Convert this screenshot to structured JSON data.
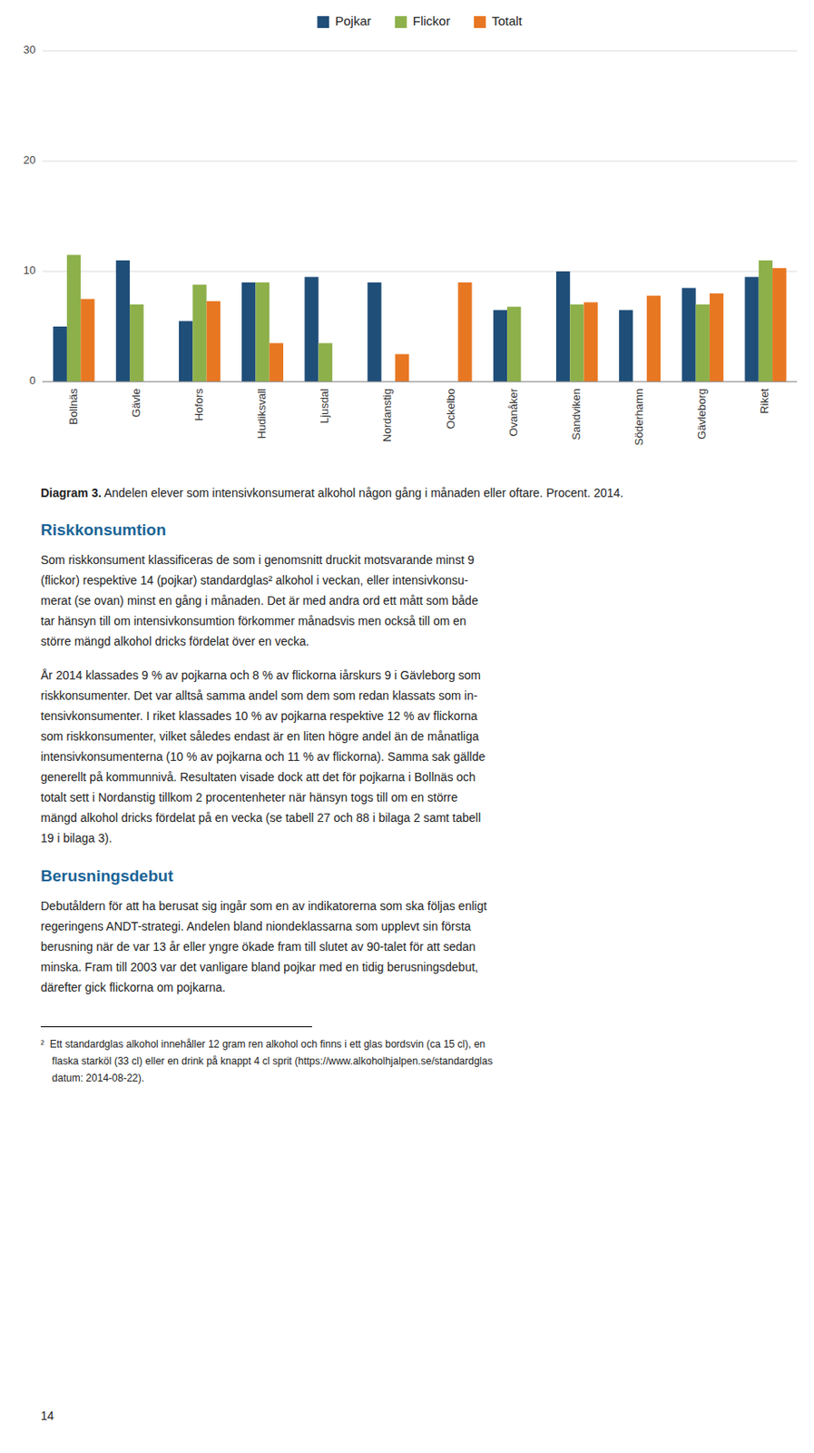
{
  "chart_data": {
    "type": "bar",
    "title": "Diagram 3. Andelen elever som intensivkonsumerat alkohol någon gång i månaden eller oftare. Procent. 2014.",
    "categories": [
      "Bollnäs",
      "Gävle",
      "Hofors",
      "Hudiksvall",
      "Ljusdal",
      "Nordanstig",
      "Ockelbo",
      "Ovanåker",
      "Sandviken",
      "Söderhamn",
      "Gävleborg",
      "Riket"
    ],
    "series": [
      {
        "name": "Pojkar",
        "color": "#1F4E79",
        "values": [
          5.0,
          11.0,
          5.5,
          9.0,
          9.5,
          9.0,
          null,
          6.5,
          10.0,
          6.5,
          8.5,
          9.5
        ]
      },
      {
        "name": "Flickor",
        "color": "#8DB04A",
        "values": [
          11.5,
          7.0,
          8.8,
          9.0,
          3.5,
          null,
          null,
          6.8,
          7.0,
          null,
          7.0,
          11.0
        ]
      },
      {
        "name": "Totalt",
        "color": "#E87722",
        "values": [
          7.5,
          null,
          7.3,
          3.5,
          null,
          2.5,
          9.0,
          null,
          7.2,
          7.8,
          8.0,
          10.3
        ]
      }
    ],
    "ylim": [
      0,
      30
    ],
    "yticks": [
      0,
      10,
      20,
      30
    ],
    "grid": true,
    "legend": "top"
  },
  "page_text": {
    "sections": [
      {
        "heading": "Riskkonsumtion",
        "paragraphs": [
          [
            "Som riskkonsument klassificeras de som i genomsnitt druckit motsvarande minst 9",
            "(flickor) respektive 14 (pojkar) standardglas² alkohol i veckan, eller intensivkonsu-",
            "merat (se ovan) minst en gång i månaden. Det är med andra ord ett mått som både",
            "tar hänsyn till om intensivkonsumtion förkommer månadsvis men också till om en",
            "större mängd alkohol dricks fördelat över en vecka."
          ],
          [
            "År 2014 klassades 9 % av pojkarna och 8 % av flickorna iårskurs 9 i Gävleborg som",
            "riskkonsumenter. Det var alltså samma andel som dem som redan klassats som in-",
            "tensivkonsumenter. I riket klassades 10 % av pojkarna respektive 12 % av flickorna",
            "som riskkonsumenter, vilket således endast är en liten högre andel än de månatliga",
            "intensivkonsumenterna (10 % av pojkarna och 11 % av flickorna). Samma sak gällde",
            "generellt på kommunnivå. Resultaten visade dock att det för pojkarna i Bollnäs och",
            "totalt sett i Nordanstig tillkom 2 procentenheter när hänsyn togs till om en större",
            "mängd alkohol dricks fördelat på en vecka (se tabell 27 och 88 i bilaga 2 samt tabell",
            "19 i bilaga 3)."
          ]
        ]
      },
      {
        "heading": "Berusningsdebut",
        "paragraphs": [
          [
            "Debutåldern för att ha berusat sig ingår som en av indikatorerna som ska följas enligt",
            "regeringens ANDT-strategi. Andelen bland niondeklassarna som upplevt sin första",
            "berusning när de var 13 år eller yngre ökade fram till slutet av 90-talet för att sedan",
            "minska. Fram till 2003 var det vanligare bland pojkar med en tidig berusningsdebut,",
            "därefter gick flickorna om pojkarna."
          ]
        ]
      }
    ],
    "footnote_lines": [
      "²  Ett standardglas alkohol innehåller 12 gram ren alkohol och finns i ett glas bordsvin (ca 15 cl), en",
      "    flaska starköl (33 cl) eller en drink på knappt 4 cl sprit (https://www.alkoholhjalpen.se/standardglas",
      "    datum: 2014-08-22)."
    ],
    "page_number": "14"
  }
}
